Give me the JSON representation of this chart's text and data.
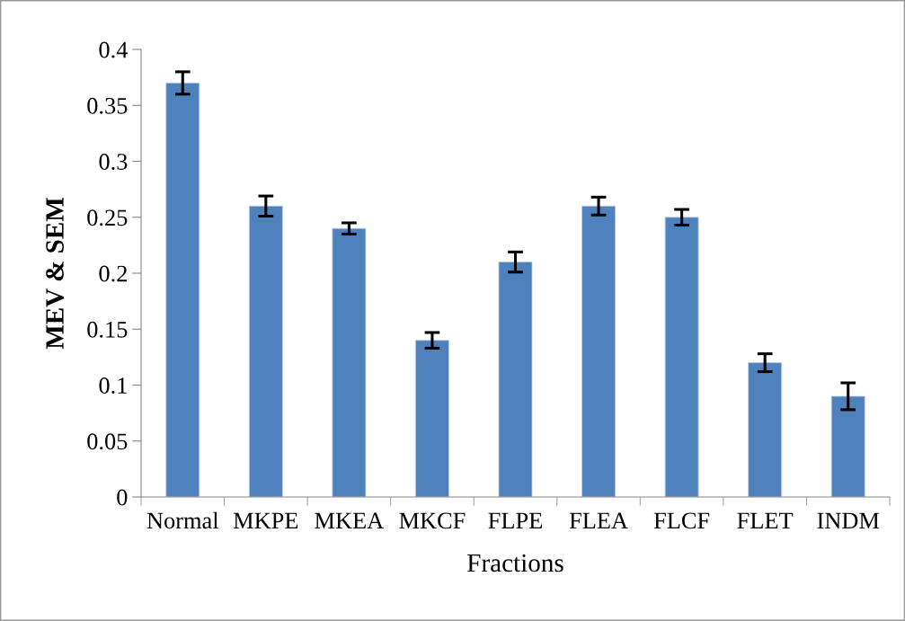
{
  "chart_data": {
    "type": "bar",
    "xlabel": "Fractions",
    "ylabel": "MEV & SEM",
    "categories": [
      "Normal",
      "MKPE",
      "MKEA",
      "MKCF",
      "FLPE",
      "FLEA",
      "FLCF",
      "FLET",
      "INDM"
    ],
    "values": [
      0.37,
      0.26,
      0.24,
      0.14,
      0.21,
      0.26,
      0.25,
      0.12,
      0.09
    ],
    "errors": [
      0.01,
      0.009,
      0.005,
      0.007,
      0.009,
      0.008,
      0.007,
      0.008,
      0.012
    ],
    "color": "#4f81bd",
    "ylim": [
      0,
      0.4
    ],
    "yticks": [
      0,
      0.05,
      0.1,
      0.15,
      0.2,
      0.25,
      0.3,
      0.35,
      0.4
    ],
    "grid": false,
    "legend": false
  }
}
